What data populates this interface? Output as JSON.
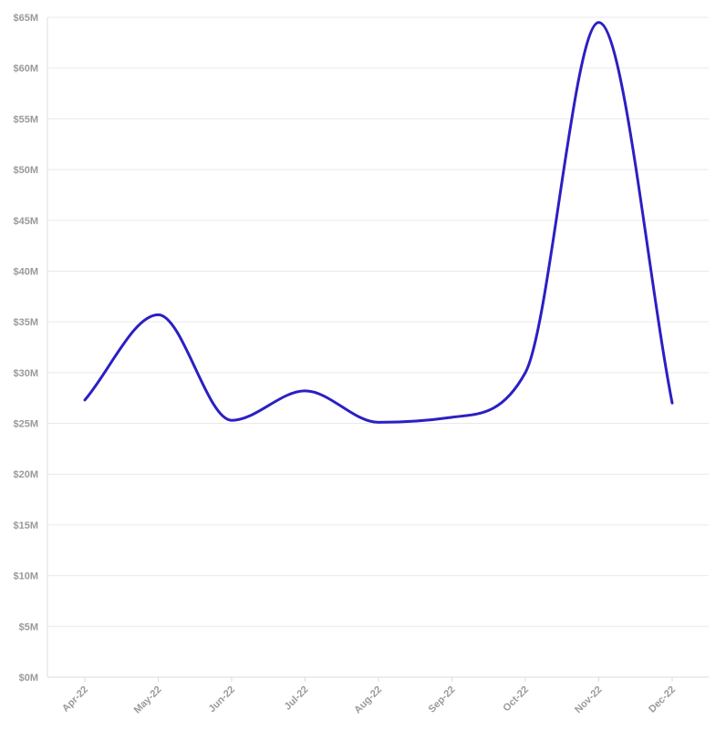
{
  "chart_data": {
    "type": "line",
    "title": "",
    "xlabel": "",
    "ylabel": "",
    "categories": [
      "Apr-22",
      "May-22",
      "Jun-22",
      "Jul-22",
      "Aug-22",
      "Sep-22",
      "Oct-22",
      "Nov-22",
      "Dec-22"
    ],
    "series": [
      {
        "values": [
          27.3,
          35.7,
          25.3,
          28.2,
          25.1,
          25.6,
          30.0,
          64.5,
          27.0
        ]
      }
    ],
    "ylim": [
      0,
      65
    ],
    "yticks": [
      0,
      5,
      10,
      15,
      20,
      25,
      30,
      35,
      40,
      45,
      50,
      55,
      60,
      65
    ],
    "ytick_labels": [
      "$0M",
      "$5M",
      "$10M",
      "$15M",
      "$20M",
      "$25M",
      "$30M",
      "$35M",
      "$40M",
      "$45M",
      "$50M",
      "$55M",
      "$60M",
      "$65M"
    ],
    "grid": true,
    "legend": "none",
    "colors": {
      "line": "#2b1fc4",
      "grid": "#e9e9e9",
      "tick_text": "#9a9a9a"
    }
  }
}
